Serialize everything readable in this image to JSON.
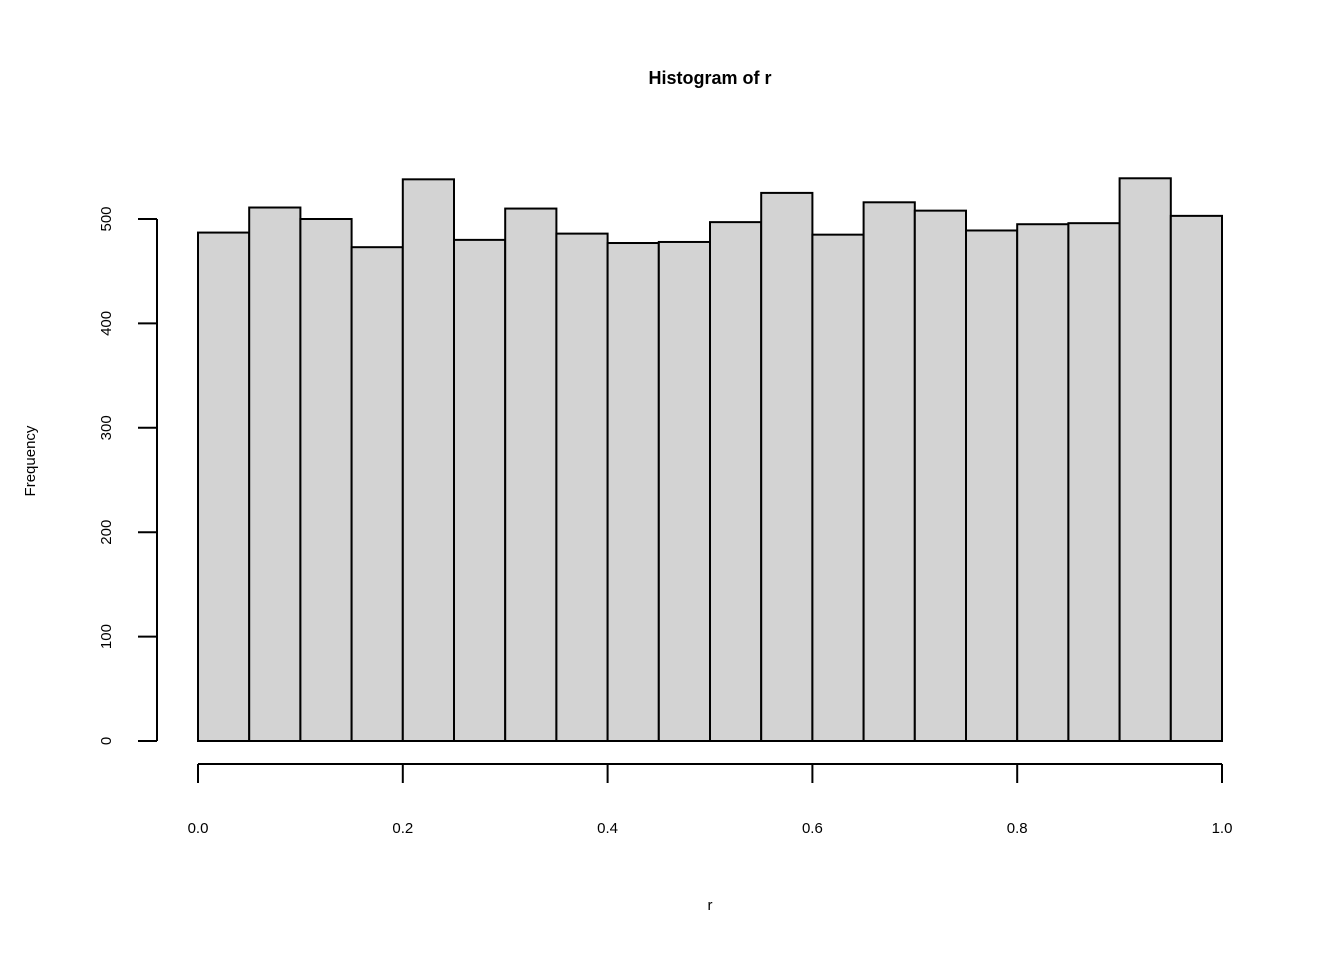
{
  "chart_data": {
    "type": "bar",
    "title": "Histogram of r",
    "xlabel": "r",
    "ylabel": "Frequency",
    "bin_edges": [
      0.0,
      0.05,
      0.1,
      0.15,
      0.2,
      0.25,
      0.3,
      0.35,
      0.4,
      0.45,
      0.5,
      0.55,
      0.6,
      0.65,
      0.7,
      0.75,
      0.8,
      0.85,
      0.9,
      0.95,
      1.0
    ],
    "values": [
      487,
      511,
      500,
      473,
      538,
      480,
      510,
      486,
      477,
      478,
      497,
      525,
      485,
      516,
      508,
      489,
      495,
      496,
      539,
      503
    ],
    "xlim": [
      0,
      1
    ],
    "ylim": [
      0,
      500
    ],
    "x_ticks": [
      "0.0",
      "0.2",
      "0.4",
      "0.6",
      "0.8",
      "1.0"
    ],
    "x_tick_values": [
      0.0,
      0.2,
      0.4,
      0.6,
      0.8,
      1.0
    ],
    "y_ticks": [
      "0",
      "100",
      "200",
      "300",
      "400",
      "500"
    ],
    "y_tick_values": [
      0,
      100,
      200,
      300,
      400,
      500
    ],
    "bar_fill": "#d3d3d3",
    "bar_stroke": "#000000",
    "grid": false
  }
}
